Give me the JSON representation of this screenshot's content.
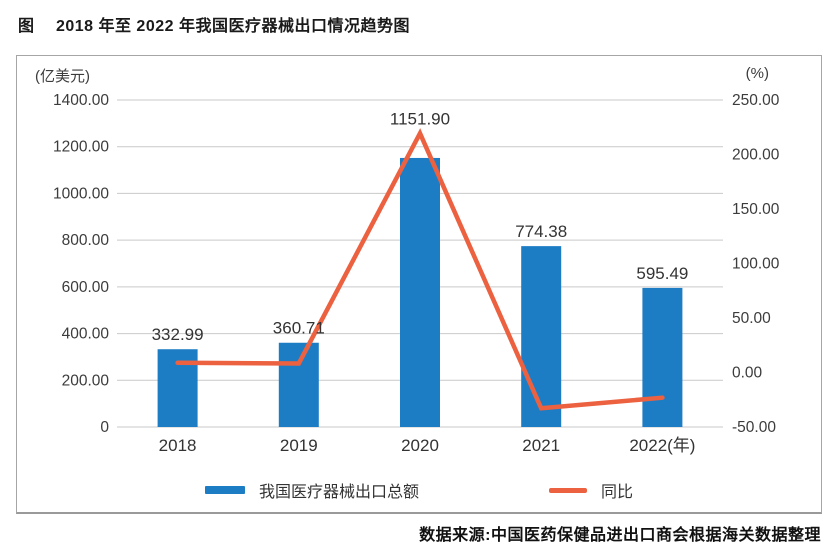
{
  "title": "图　 2018 年至 2022 年我国医疗器械出口情况趋势图",
  "source": "数据来源:中国医药保健品进出口商会根据海关数据整理",
  "colors": {
    "bar_blue": "#1d7dc4",
    "line_orange": "#ec6140",
    "gridline": "#c9c9c9",
    "axis_text": "#3c3c3c",
    "value_text": "#333333",
    "box_border": "#a6a6a6"
  },
  "legend": {
    "items": [
      {
        "swatch": "bar-swatch",
        "label": "我国医疗器械出口总额"
      },
      {
        "swatch": "line-swatch",
        "label": "同比"
      }
    ]
  },
  "chart_data": {
    "type": "bar",
    "combo": "bar+line, dual axis",
    "categories": [
      "2018",
      "2019",
      "2020",
      "2021",
      "2022"
    ],
    "x_tick_labels": [
      "2018",
      "2019",
      "2020",
      "2021",
      "2022(年)"
    ],
    "series": [
      {
        "name": "我国医疗器械出口总额",
        "type": "bar",
        "axis": "left",
        "values": [
          332.99,
          360.71,
          1151.9,
          774.38,
          595.49
        ],
        "labels": [
          "332.99",
          "360.71",
          "1151.90",
          "774.38",
          "595.49"
        ]
      },
      {
        "name": "同比",
        "type": "line",
        "axis": "right",
        "values": [
          8.9,
          8.3,
          219.4,
          -32.8,
          -23.1
        ]
      }
    ],
    "left_axis": {
      "unit": "(亿美元)",
      "min": 0,
      "max": 1400,
      "step": 200,
      "tick_labels": [
        "1400.00",
        "1200.00",
        "1000.00",
        "800.00",
        "600.00",
        "400.00",
        "200.00",
        "0"
      ]
    },
    "right_axis": {
      "unit": "(%)",
      "min": -50,
      "max": 250,
      "step": 50,
      "tick_labels": [
        "250.00",
        "200.00",
        "150.00",
        "100.00",
        "50.00",
        "0.00",
        "-50.00"
      ]
    },
    "grid": "horizontal gridlines at left-axis intervals",
    "legend_position": "bottom"
  }
}
